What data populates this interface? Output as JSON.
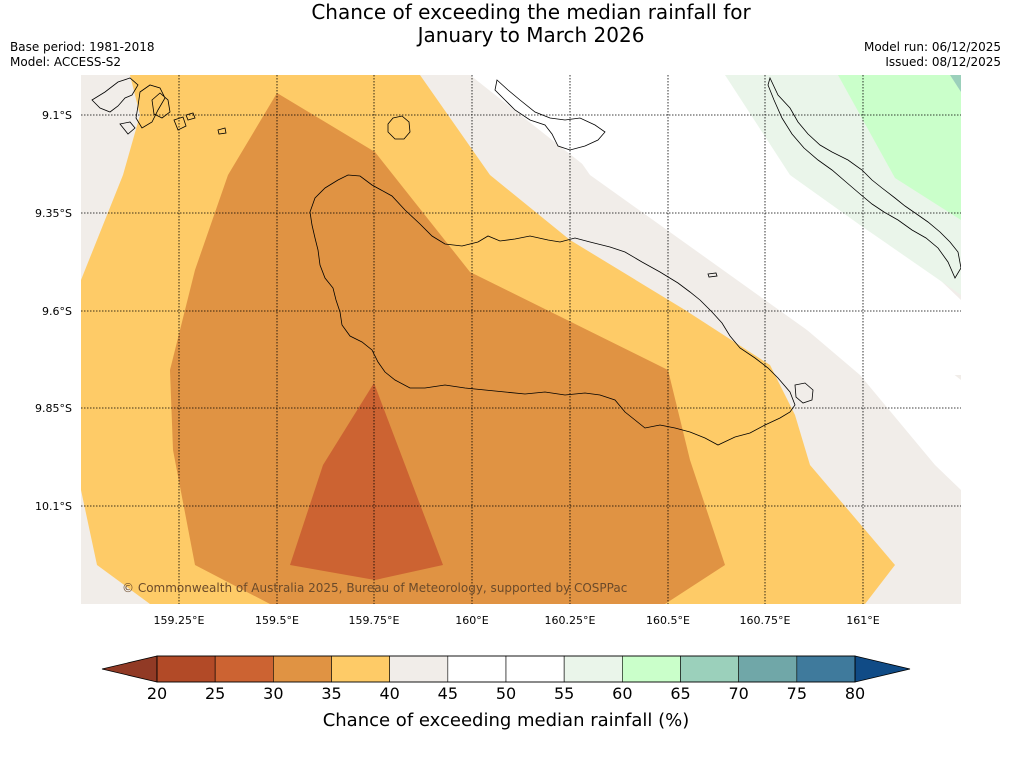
{
  "title": {
    "line1": "Chance of exceeding the median rainfall for",
    "line2": "January to March 2026"
  },
  "meta": {
    "base_period": "Base period: 1981-2018",
    "model": "Model: ACCESS-S2",
    "model_run": "Model run: 06/12/2025",
    "issued": "Issued: 08/12/2025"
  },
  "map": {
    "lat_labels": [
      "9.1°S",
      "9.35°S",
      "9.6°S",
      "9.85°S",
      "10.1°S"
    ],
    "lon_labels": [
      "159.25°E",
      "159.5°E",
      "159.75°E",
      "160°E",
      "160.25°E",
      "160.5°E",
      "160.75°E",
      "161°E"
    ],
    "copyright": "© Commonwealth of Australia 2025, Bureau of Meteorology, supported by COSPPac"
  },
  "colorbar": {
    "title": "Chance of exceeding median rainfall (%)",
    "ticks": [
      "20",
      "25",
      "30",
      "35",
      "40",
      "45",
      "50",
      "55",
      "60",
      "65",
      "70",
      "75",
      "80"
    ],
    "low_color": "#913a25",
    "high_color": "#104b86",
    "colors": [
      "#b24a27",
      "#cc6332",
      "#e09343",
      "#fecb67",
      "#f1ede9",
      "#ffffff",
      "#ffffff",
      "#eaf5ea",
      "#caffca",
      "#9bd0bb",
      "#70a7a8",
      "#3f7a9c"
    ]
  },
  "palette": {
    "c20": "#b24a27",
    "c25": "#cc6332",
    "c30": "#e09343",
    "c35": "#fecb67",
    "c40": "#f1ede9",
    "c45": "#ffffff",
    "c55": "#eaf5ea",
    "c60": "#caffca",
    "c65": "#9bd0bb"
  }
}
